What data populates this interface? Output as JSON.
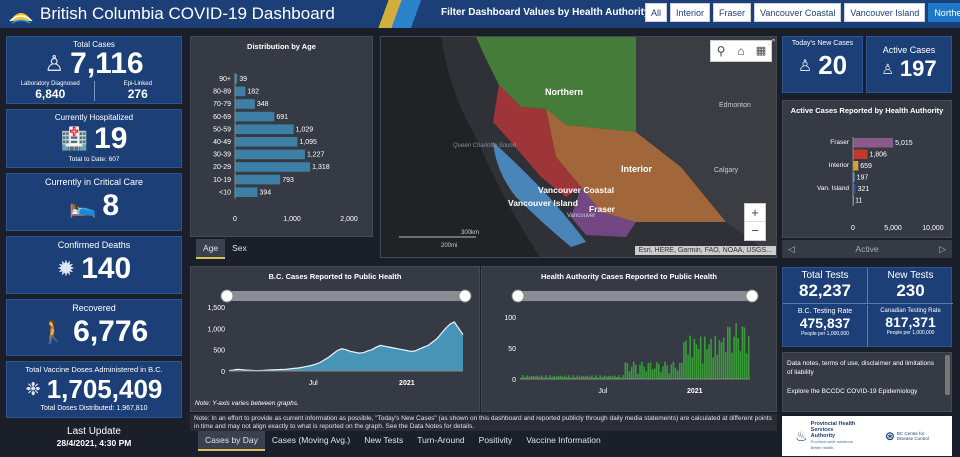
{
  "header": {
    "title": "British Columbia COVID-19 Dashboard",
    "filter_label": "Filter Dashboard Values by Health Authority:",
    "filters": [
      "All",
      "Interior",
      "Fraser",
      "Vancouver Coastal",
      "Vancouver Island",
      "Northern"
    ],
    "active_filter": "Northern"
  },
  "total_cases": {
    "label": "Total Cases",
    "value": "7,116",
    "lab_label": "Laboratory Diagnosed",
    "lab_value": "6,840",
    "epi_label": "Epi-Linked",
    "epi_value": "276"
  },
  "hospitalized": {
    "label": "Currently Hospitalized",
    "value": "19",
    "note": "Total to Date: 607"
  },
  "critical": {
    "label": "Currently in Critical Care",
    "value": "8"
  },
  "deaths": {
    "label": "Confirmed Deaths",
    "value": "140"
  },
  "recovered": {
    "label": "Recovered",
    "value": "6,776"
  },
  "vaccine": {
    "label": "Total Vaccine Doses Administered in B.C.",
    "value": "1,705,409",
    "distributed": "Total Doses Distributed: 1,967,810"
  },
  "last_update": {
    "label": "Last Update",
    "value": "28/4/2021, 4:30 PM"
  },
  "age_chart": {
    "tabs": [
      "Age",
      "Sex"
    ],
    "chart_data": {
      "type": "bar",
      "title": "Distribution by Age",
      "categories": [
        "90+",
        "80-89",
        "70-79",
        "60-69",
        "50-59",
        "40-49",
        "30-39",
        "20-29",
        "10-19",
        "<10"
      ],
      "values": [
        39,
        182,
        348,
        691,
        1029,
        1095,
        1227,
        1318,
        793,
        394
      ],
      "labels": [
        "39",
        "182",
        "348",
        "691",
        "1,029",
        "1,095",
        "1,227",
        "1,318",
        "793",
        "394"
      ],
      "xticks": [
        "0",
        "1,000",
        "2,000"
      ],
      "xlim": [
        0,
        2000
      ]
    }
  },
  "map": {
    "regions": [
      "Northern",
      "Interior",
      "Vancouver Coastal",
      "Vancouver Island",
      "Fraser"
    ],
    "places": [
      "Edmonton",
      "Calgary",
      "Vancouver",
      "Queen Charlotte Sound"
    ],
    "scale_km": "300km",
    "scale_mi": "200mi",
    "attribution": "Esri, HERE, Garmin, FAO, NOAA, USGS..."
  },
  "todays_new": {
    "label": "Today's New Cases",
    "value": "20"
  },
  "active": {
    "label": "Active Cases",
    "value": "197"
  },
  "ha_chart": {
    "title": "Active Cases Reported by Health Authority",
    "nav_label": "Active",
    "chart_data": {
      "type": "bar",
      "categories": [
        "Fraser",
        "",
        "Interior",
        "",
        "Van. Island",
        ""
      ],
      "values": [
        5015,
        1806,
        659,
        197,
        321,
        11
      ],
      "labels": [
        "5,015",
        "1,806",
        "659",
        "197",
        "321",
        "11"
      ],
      "colors": [
        "#8b5a8c",
        "#c0392b",
        "#d8a23a",
        "#4d9dd8",
        "#2a4fa0",
        "#7aa0c8"
      ],
      "xticks": [
        "0",
        "5,000",
        "10,000"
      ],
      "xlim": [
        0,
        10000
      ]
    }
  },
  "tests": {
    "total_label": "Total Tests",
    "total_value": "82,237",
    "new_label": "New Tests",
    "new_value": "230",
    "bc_rate_label": "B.C. Testing Rate",
    "bc_rate_value": "475,837",
    "bc_rate_sub": "People per 1,000,000",
    "ca_rate_label": "Canadian Testing Rate",
    "ca_rate_value": "817,371",
    "ca_rate_sub": "People per 1,000,000"
  },
  "notes": {
    "line1": "Data notes, terms of use, disclaimer and limitations of liability",
    "line2": "Explore the BCCDC COVID-19 Epidemiology"
  },
  "bc_chart": {
    "chart_data": {
      "type": "area",
      "title": "B.C. Cases Reported to Public Health",
      "yticks": [
        "1,500",
        "1,000",
        "500",
        "0"
      ],
      "ylim": [
        0,
        1500
      ],
      "xlabels": [
        "Jul",
        "2021"
      ],
      "values": [
        10,
        20,
        40,
        30,
        20,
        15,
        10,
        10,
        15,
        20,
        25,
        30,
        35,
        40,
        50,
        60,
        70,
        90,
        110,
        130,
        160,
        200,
        260,
        320,
        400,
        480,
        520,
        500,
        460,
        440,
        420,
        430,
        470,
        500,
        560,
        600,
        580,
        560,
        540,
        520,
        500,
        480,
        460,
        470,
        520,
        560,
        600,
        680,
        760,
        880,
        1000,
        1100,
        1150,
        1000,
        850
      ]
    },
    "note": "Note: Y-axis varies between graphs."
  },
  "ha_cases_chart": {
    "chart_data": {
      "type": "bar",
      "title": "Health Authority Cases Reported to Public Health",
      "yticks": [
        "100",
        "50",
        "0"
      ],
      "ylim": [
        0,
        100
      ],
      "xlabels": [
        "Jul",
        "2021"
      ]
    }
  },
  "bottom_note": "Note: In an effort to provide as current information as possible, \"Today's New Cases\" (as shown on this dashboard and reported publicly through daily media statements) are calculated at different points in time and may not align exactly to what is reported on the graph. See the Data Notes for details.",
  "bottom_tabs": [
    "Cases by Day",
    "Cases (Moving Avg.)",
    "New Tests",
    "Turn-Around",
    "Positivity",
    "Vaccine Information"
  ],
  "bottom_active_tab": "Cases by Day",
  "logos": {
    "phsa": "Provincial Health Services Authority",
    "phsa_sub": "Province-wide solutions. Better health.",
    "bccdc": "BC Centre for Disease Control"
  },
  "colors": {
    "header": "#1d3f78",
    "accent": "#1e78c8",
    "bar": "#3d7fa5",
    "area": "#4a9ec4",
    "green": "#3a9a3a"
  }
}
